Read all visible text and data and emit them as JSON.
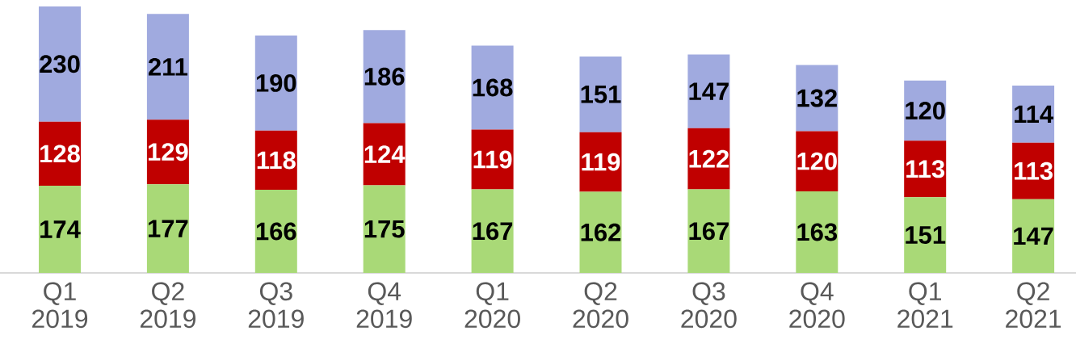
{
  "chart_data": {
    "type": "bar",
    "stacked": true,
    "data_labels": true,
    "categories": [
      "Q1 2019",
      "Q2 2019",
      "Q3 2019",
      "Q4 2019",
      "Q1 2020",
      "Q2 2020",
      "Q3 2020",
      "Q4 2020",
      "Q1 2021",
      "Q2 2021"
    ],
    "series": [
      {
        "color": "#a9d977",
        "values": [
          174,
          177,
          166,
          175,
          167,
          162,
          167,
          163,
          151,
          147
        ]
      },
      {
        "color": "#c00000",
        "values": [
          128,
          129,
          118,
          124,
          119,
          119,
          122,
          120,
          113,
          113
        ]
      },
      {
        "color": "#a0aadf",
        "values": [
          230,
          211,
          190,
          186,
          168,
          151,
          147,
          132,
          120,
          114
        ]
      }
    ]
  }
}
